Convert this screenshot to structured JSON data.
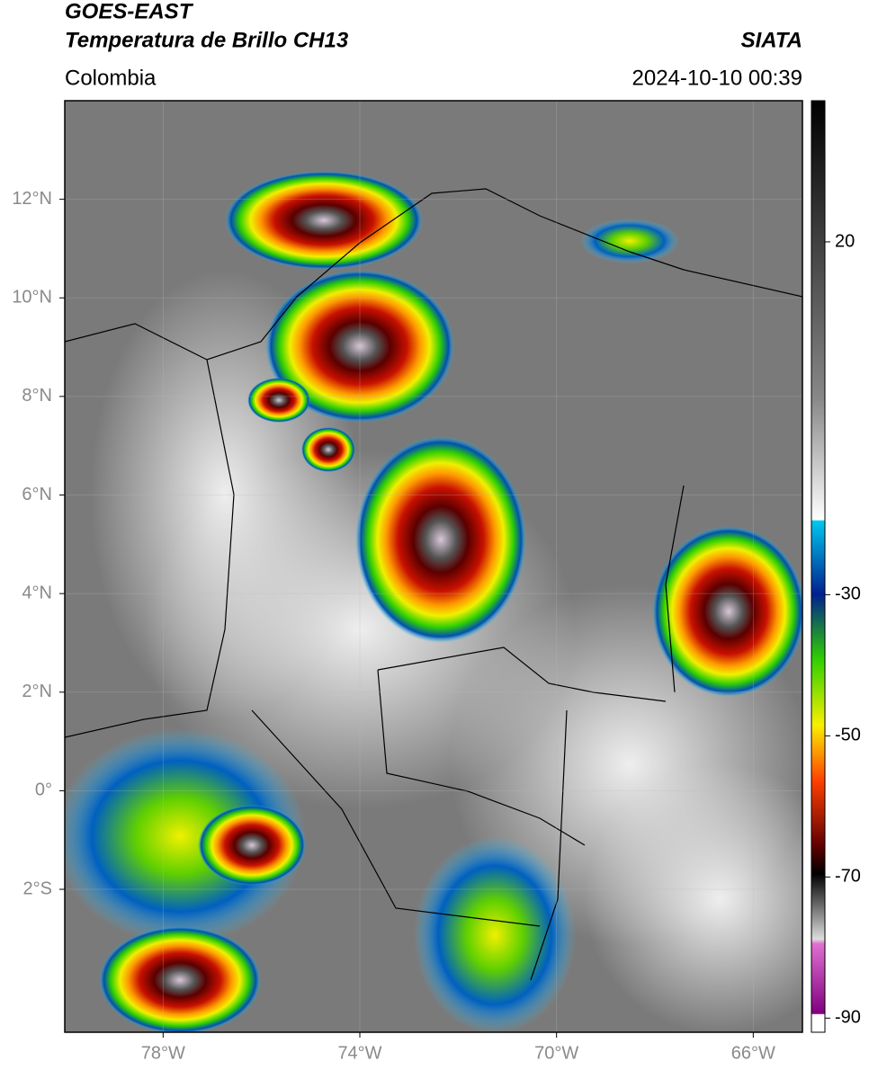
{
  "header": {
    "title": "GOES-EAST",
    "subtitle": "Temperatura de Brillo CH13",
    "region": "Colombia",
    "source": "SIATA",
    "datetime": "2024-10-10 00:39"
  },
  "map": {
    "xlim": [
      -80,
      -65
    ],
    "ylim": [
      -4.9,
      14
    ],
    "xticks": [
      {
        "value": -78,
        "label": "78°W"
      },
      {
        "value": -74,
        "label": "74°W"
      },
      {
        "value": -70,
        "label": "70°W"
      },
      {
        "value": -66,
        "label": "66°W"
      }
    ],
    "yticks": [
      {
        "value": 12,
        "label": "12°N"
      },
      {
        "value": 10,
        "label": "10°N"
      },
      {
        "value": 8,
        "label": "8°N"
      },
      {
        "value": 6,
        "label": "6°N"
      },
      {
        "value": 4,
        "label": "4°N"
      },
      {
        "value": 2,
        "label": "2°N"
      },
      {
        "value": 0,
        "label": "0°"
      },
      {
        "value": -2,
        "label": "2°S"
      }
    ]
  },
  "colorbar": {
    "lim": [
      -92,
      40
    ],
    "ticks": [
      20,
      -30,
      -50,
      -70,
      -90
    ]
  }
}
